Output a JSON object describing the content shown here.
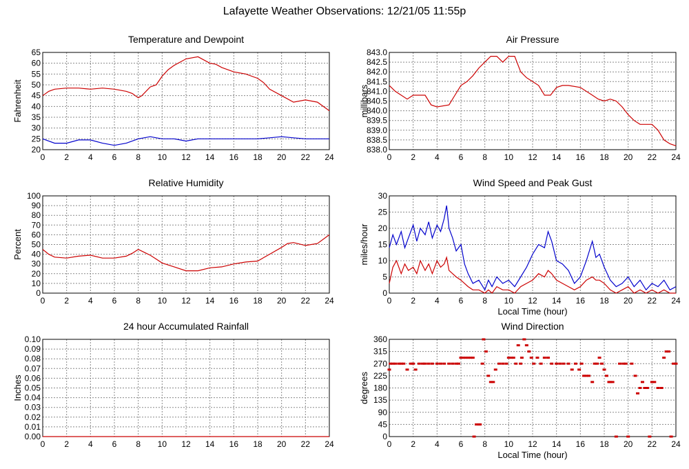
{
  "title": "Lafayette Weather Observations: 12/21/05 11:55p",
  "colors": {
    "red": "#cc0000",
    "blue": "#0000cc",
    "grid": "#888888"
  },
  "chart_data": [
    {
      "id": "temp",
      "type": "line",
      "title": "Temperature and Dewpoint",
      "xlabel": "",
      "ylabel": "Fahrenheit",
      "xlim": [
        0,
        24
      ],
      "ylim": [
        20,
        65
      ],
      "xticks": [
        0,
        2,
        4,
        6,
        8,
        10,
        12,
        14,
        16,
        18,
        20,
        22,
        24
      ],
      "yticks": [
        20,
        25,
        30,
        35,
        40,
        45,
        50,
        55,
        60,
        65
      ],
      "series": [
        {
          "color": "red",
          "x": [
            0,
            0.5,
            1,
            2,
            3,
            4,
            5,
            6,
            7,
            7.5,
            8,
            8.3,
            9,
            9.5,
            10,
            10.5,
            11,
            12,
            13,
            14,
            14.5,
            15,
            16,
            17,
            18,
            18.5,
            19,
            20,
            21,
            22,
            23,
            24
          ],
          "y": [
            45,
            47,
            48,
            48.5,
            48.5,
            48,
            48.5,
            48,
            47,
            46,
            44,
            45,
            49,
            50,
            54,
            57,
            59,
            62,
            63,
            60,
            59.5,
            58,
            56,
            55,
            53,
            51,
            48,
            45,
            42,
            43,
            42,
            38
          ]
        },
        {
          "color": "blue",
          "x": [
            0,
            1,
            2,
            3,
            4,
            5,
            6,
            7,
            8,
            9,
            10,
            11,
            12,
            13,
            14,
            15,
            16,
            17,
            18,
            19,
            20,
            21,
            22,
            23,
            24
          ],
          "y": [
            25,
            23,
            23,
            24.5,
            24.5,
            23,
            22,
            23,
            25,
            26,
            25,
            25,
            24,
            25,
            25,
            25,
            25,
            25,
            25,
            25.5,
            26,
            25.5,
            25,
            25,
            25
          ]
        }
      ]
    },
    {
      "id": "pressure",
      "type": "line",
      "title": "Air Pressure",
      "xlabel": "",
      "ylabel": "millibars",
      "xlim": [
        0,
        24
      ],
      "ylim": [
        838.0,
        843.0
      ],
      "xticks": [
        0,
        2,
        4,
        6,
        8,
        10,
        12,
        14,
        16,
        18,
        20,
        22,
        24
      ],
      "yticks": [
        "838.0",
        "838.5",
        "839.0",
        "839.5",
        "840.0",
        "840.5",
        "841.0",
        "841.5",
        "842.0",
        "842.5",
        "843.0"
      ],
      "series": [
        {
          "color": "red",
          "x": [
            0,
            0.5,
            1,
            1.5,
            2,
            3,
            3.5,
            4,
            5,
            5.5,
            6,
            6.5,
            7,
            7.5,
            8,
            8.5,
            9,
            9.5,
            10,
            10.5,
            11,
            11.5,
            12,
            12.5,
            13,
            13.5,
            14,
            14.5,
            15,
            16,
            17,
            17.5,
            18,
            18.5,
            19,
            19.5,
            20,
            20.5,
            21,
            22,
            22.5,
            23,
            23.5,
            24
          ],
          "y": [
            841.3,
            841.0,
            840.8,
            840.6,
            840.8,
            840.8,
            840.3,
            840.2,
            840.3,
            840.8,
            841.3,
            841.5,
            841.8,
            842.2,
            842.5,
            842.8,
            842.8,
            842.5,
            842.8,
            842.8,
            842.0,
            841.7,
            841.5,
            841.3,
            840.8,
            840.8,
            841.2,
            841.3,
            841.3,
            841.2,
            840.8,
            840.6,
            840.5,
            840.6,
            840.5,
            840.2,
            839.8,
            839.5,
            839.3,
            839.3,
            839.0,
            838.5,
            838.3,
            838.2
          ]
        }
      ]
    },
    {
      "id": "humidity",
      "type": "line",
      "title": "Relative Humidity",
      "xlabel": "",
      "ylabel": "Percent",
      "xlim": [
        0,
        24
      ],
      "ylim": [
        0,
        100
      ],
      "xticks": [
        0,
        2,
        4,
        6,
        8,
        10,
        12,
        14,
        16,
        18,
        20,
        22,
        24
      ],
      "yticks": [
        0,
        10,
        20,
        30,
        40,
        50,
        60,
        70,
        80,
        90,
        100
      ],
      "series": [
        {
          "color": "red",
          "x": [
            0,
            0.5,
            1,
            2,
            3,
            4,
            5,
            6,
            7,
            7.5,
            8,
            8.5,
            9,
            9.5,
            10,
            11,
            12,
            13,
            14,
            15,
            16,
            17,
            18,
            19,
            20,
            20.5,
            21,
            22,
            23,
            24
          ],
          "y": [
            45,
            40,
            37,
            36,
            38,
            39,
            36,
            36,
            38,
            41,
            45,
            42,
            39,
            35,
            31,
            27,
            23,
            23,
            26,
            27,
            30,
            32,
            33,
            40,
            47,
            51,
            52,
            49,
            51,
            60
          ]
        }
      ]
    },
    {
      "id": "wind",
      "type": "line",
      "title": "Wind Speed and Peak Gust",
      "xlabel": "Local Time (hour)",
      "ylabel": "miles/hour",
      "xlim": [
        0,
        24
      ],
      "ylim": [
        0,
        30
      ],
      "xticks": [
        0,
        2,
        4,
        6,
        8,
        10,
        12,
        14,
        16,
        18,
        20,
        22,
        24
      ],
      "yticks": [
        0,
        5,
        10,
        15,
        20,
        25,
        30
      ],
      "series": [
        {
          "color": "blue",
          "x": [
            0,
            0.3,
            0.6,
            1,
            1.3,
            1.6,
            2,
            2.3,
            2.6,
            3,
            3.3,
            3.6,
            4,
            4.3,
            4.6,
            4.8,
            5,
            5.3,
            5.6,
            6,
            6.3,
            6.6,
            7,
            7.5,
            8,
            8.3,
            8.6,
            9,
            9.5,
            10,
            10.5,
            11,
            11.5,
            12,
            12.5,
            13,
            13.3,
            13.6,
            14,
            14.5,
            15,
            15.5,
            16,
            16.5,
            17,
            17.3,
            17.6,
            18,
            18.5,
            19,
            19.5,
            20,
            20.5,
            21,
            21.5,
            22,
            22.5,
            23,
            23.5,
            24
          ],
          "y": [
            14,
            18,
            15,
            19,
            14,
            17,
            21,
            16,
            20,
            18,
            22,
            17,
            21,
            19,
            23,
            27,
            20,
            17,
            13,
            15,
            9,
            6,
            3,
            4,
            1,
            4,
            2,
            5,
            3,
            4,
            2,
            5,
            8,
            12,
            15,
            14,
            19,
            16,
            10,
            9,
            7,
            3,
            5,
            10,
            16,
            11,
            12,
            8,
            4,
            2,
            3,
            5,
            2,
            4,
            1,
            3,
            2,
            4,
            1,
            2
          ]
        },
        {
          "color": "red",
          "x": [
            0,
            0.3,
            0.6,
            1,
            1.3,
            1.6,
            2,
            2.3,
            2.6,
            3,
            3.3,
            3.6,
            4,
            4.3,
            4.6,
            4.8,
            5,
            5.3,
            5.6,
            6,
            6.3,
            6.6,
            7,
            7.5,
            8,
            8.3,
            8.6,
            9,
            9.5,
            10,
            10.5,
            11,
            11.5,
            12,
            12.5,
            13,
            13.3,
            13.6,
            14,
            14.5,
            15,
            15.5,
            16,
            16.5,
            17,
            17.3,
            17.6,
            18,
            18.5,
            19,
            19.5,
            20,
            20.5,
            21,
            21.5,
            22,
            22.5,
            23,
            23.5,
            24
          ],
          "y": [
            3,
            8,
            10,
            6,
            9,
            7,
            8,
            6,
            10,
            7,
            9,
            6,
            10,
            8,
            9,
            11,
            7,
            6,
            5,
            4,
            3,
            2,
            1,
            1,
            0,
            1,
            0,
            2,
            1,
            1,
            0,
            2,
            3,
            4,
            6,
            5,
            7,
            6,
            4,
            3,
            2,
            1,
            2,
            4,
            5,
            4,
            4,
            3,
            1,
            0,
            1,
            2,
            0,
            1,
            0,
            1,
            0,
            1,
            0,
            0
          ]
        }
      ]
    },
    {
      "id": "rain",
      "type": "line",
      "title": "24 hour Accumulated Rainfall",
      "xlabel": "",
      "ylabel": "Inches",
      "xlim": [
        0,
        24
      ],
      "ylim": [
        0,
        0.1
      ],
      "xticks": [
        0,
        2,
        4,
        6,
        8,
        10,
        12,
        14,
        16,
        18,
        20,
        22,
        24
      ],
      "yticks": [
        "0.00",
        "0.01",
        "0.02",
        "0.03",
        "0.04",
        "0.05",
        "0.06",
        "0.07",
        "0.08",
        "0.09",
        "0.10"
      ],
      "series": [
        {
          "color": "red",
          "x": [
            0,
            24
          ],
          "y": [
            0,
            0
          ]
        }
      ]
    },
    {
      "id": "direction",
      "type": "scatter",
      "title": "Wind Direction",
      "xlabel": "Local Time (hour)",
      "ylabel": "degrees",
      "xlim": [
        0,
        24
      ],
      "ylim": [
        0,
        360
      ],
      "xticks": [
        0,
        2,
        4,
        6,
        8,
        10,
        12,
        14,
        16,
        18,
        20,
        22,
        24
      ],
      "yticks": [
        0,
        45,
        90,
        135,
        180,
        225,
        270,
        315,
        360
      ],
      "series": [
        {
          "color": "red",
          "x": [
            0,
            0.1,
            0.3,
            0.5,
            0.8,
            1,
            1.2,
            1.5,
            1.8,
            2,
            2.2,
            2.5,
            2.8,
            3,
            3.3,
            3.6,
            4,
            4.3,
            4.6,
            5,
            5.3,
            5.6,
            5.8,
            6,
            6.2,
            6.4,
            6.6,
            6.8,
            7,
            7.1,
            7.3,
            7.5,
            7.6,
            7.8,
            7.9,
            8.1,
            8.3,
            8.5,
            8.7,
            8.9,
            9.2,
            9.5,
            9.8,
            10,
            10.2,
            10.4,
            10.6,
            10.8,
            11,
            11.1,
            11.3,
            11.5,
            11.7,
            11.9,
            12.1,
            12.4,
            12.7,
            13,
            13.3,
            13.6,
            14,
            14.3,
            14.6,
            15,
            15.3,
            15.6,
            15.9,
            16.1,
            16.3,
            16.5,
            16.7,
            17,
            17.2,
            17.4,
            17.6,
            17.8,
            18,
            18.2,
            18.4,
            18.5,
            18.7,
            19,
            19.3,
            19.6,
            19.8,
            20,
            20.3,
            20.6,
            20.8,
            21,
            21.2,
            21.4,
            21.6,
            21.8,
            22,
            22.2,
            22.5,
            22.8,
            23,
            23.2,
            23.4,
            23.6,
            23.8,
            24
          ],
          "y": [
            248,
            270,
            270,
            270,
            270,
            270,
            270,
            248,
            270,
            270,
            248,
            270,
            270,
            270,
            270,
            270,
            270,
            270,
            270,
            270,
            270,
            270,
            270,
            292,
            292,
            292,
            292,
            292,
            292,
            0,
            45,
            45,
            45,
            270,
            360,
            315,
            225,
            202,
            202,
            248,
            270,
            270,
            270,
            292,
            292,
            292,
            270,
            338,
            270,
            292,
            360,
            338,
            315,
            292,
            270,
            292,
            270,
            292,
            292,
            270,
            270,
            270,
            270,
            270,
            248,
            270,
            248,
            270,
            225,
            225,
            225,
            202,
            270,
            270,
            292,
            270,
            248,
            225,
            202,
            202,
            202,
            0,
            270,
            270,
            270,
            0,
            270,
            225,
            160,
            180,
            202,
            180,
            180,
            0,
            202,
            202,
            180,
            180,
            292,
            315,
            315,
            0,
            270,
            270
          ]
        }
      ]
    }
  ]
}
